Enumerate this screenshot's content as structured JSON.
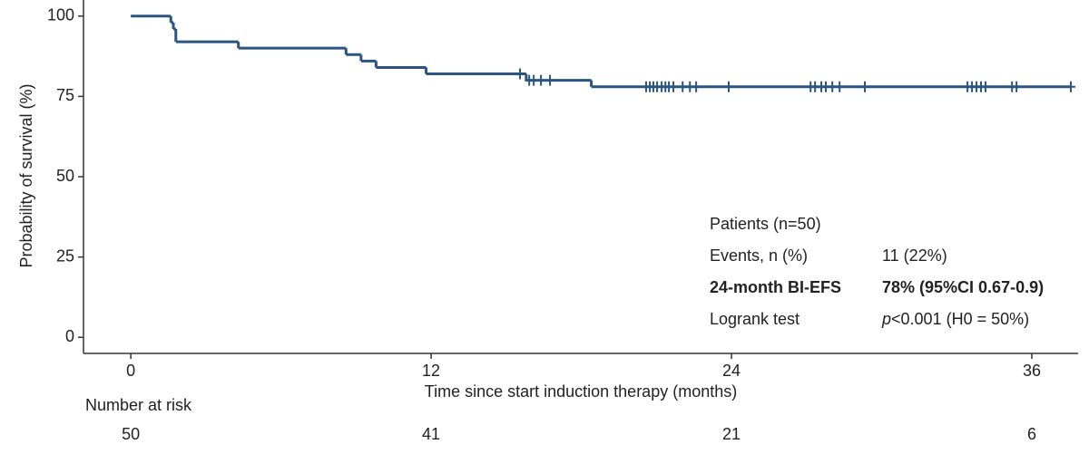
{
  "chart_data": {
    "type": "step",
    "x_label": "Time since start induction therapy (months)",
    "y_label": "Probability of survival (%)",
    "xlim": [
      -1.89,
      37.85
    ],
    "ylim": [
      -5,
      105
    ],
    "xticks": [
      0,
      12,
      24,
      36
    ],
    "yticks": [
      0,
      25,
      50,
      75,
      100
    ],
    "color": "#2b5580",
    "x": [
      0,
      1.6,
      1.7,
      1.8,
      4.3,
      8.6,
      9.2,
      9.8,
      11.8,
      15.8,
      18.4
    ],
    "values": [
      100,
      98,
      96,
      92,
      90,
      88,
      86,
      84,
      82,
      80,
      78
    ],
    "censor": {
      "x": [
        15.55,
        15.92,
        16.1,
        16.39,
        16.75,
        20.59,
        20.74,
        20.88,
        21.03,
        21.21,
        21.36,
        21.5,
        21.68,
        22.05,
        22.34,
        22.59,
        23.89,
        27.16,
        27.34,
        27.59,
        27.77,
        28.03,
        28.32,
        29.33,
        33.43,
        33.61,
        33.79,
        33.97,
        34.15,
        35.21,
        35.39,
        37.56
      ],
      "values": [
        82,
        80,
        80,
        80,
        80,
        78,
        78,
        78,
        78,
        78,
        78,
        78,
        78,
        78,
        78,
        78,
        78,
        78,
        78,
        78,
        78,
        78,
        78,
        78,
        78,
        78,
        78,
        78,
        78,
        78,
        78,
        78
      ]
    },
    "annotation": [
      {
        "label": "Patients (n=50)"
      },
      {
        "label": "Events, n (%)",
        "value": "11 (22%)"
      },
      {
        "label": "24-month BI-EFS",
        "value": "78% (95%CI 0.67-0.9)",
        "bold": true
      },
      {
        "label": "Logrank test",
        "value_italic": "p",
        "value": "<0.001 (H0 = 50%)"
      }
    ],
    "risk_table": {
      "title": "Number at risk",
      "counts": [
        50,
        41,
        21,
        6
      ]
    }
  }
}
